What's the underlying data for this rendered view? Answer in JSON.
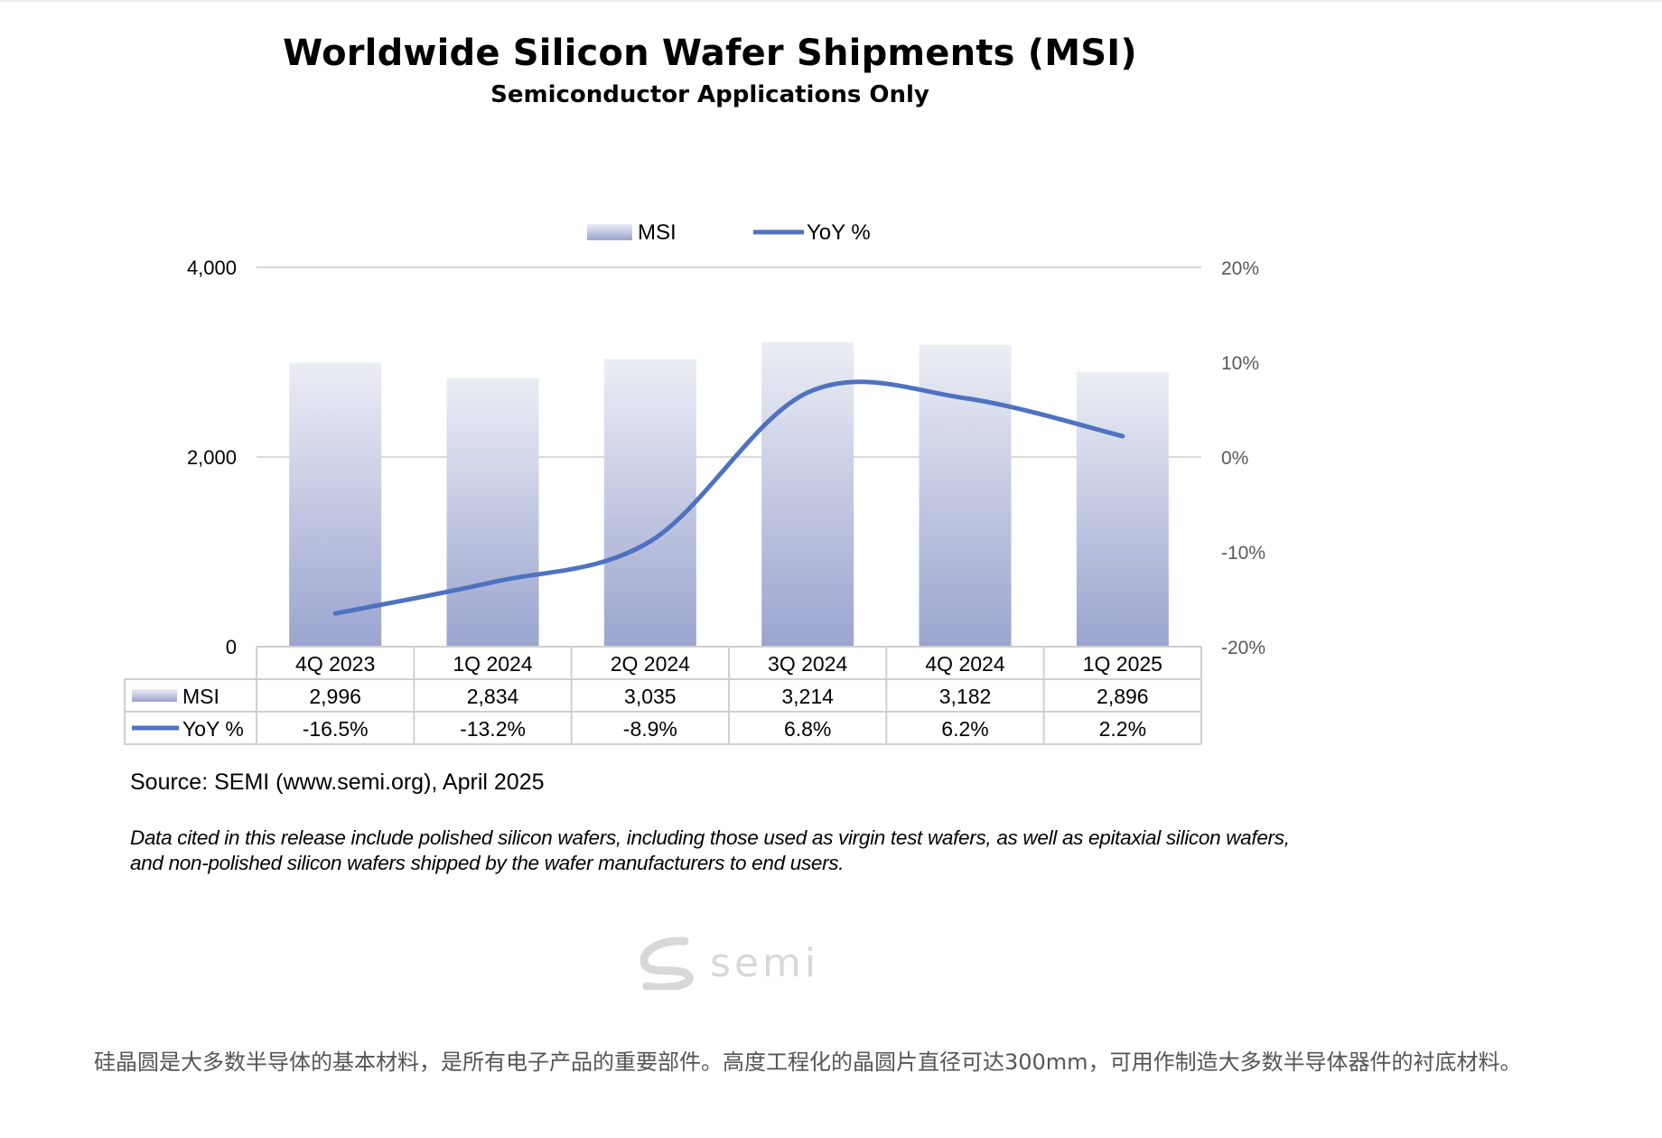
{
  "chart_data": {
    "type": "bar",
    "title": "Worldwide Silicon Wafer Shipments (MSI)",
    "subtitle": "Semiconductor Applications Only",
    "categories": [
      "4Q 2023",
      "1Q 2024",
      "2Q 2024",
      "3Q 2024",
      "4Q 2024",
      "1Q 2025"
    ],
    "series": [
      {
        "name": "MSI",
        "type": "bar",
        "axis": "left",
        "values": [
          2996,
          2834,
          3035,
          3214,
          3182,
          2896
        ],
        "labels": [
          "2,996",
          "2,834",
          "3,035",
          "3,214",
          "3,182",
          "2,896"
        ],
        "color": "#c9cde3"
      },
      {
        "name": "YoY %",
        "type": "line",
        "axis": "right",
        "values": [
          -16.5,
          -13.2,
          -8.9,
          6.8,
          6.2,
          2.2
        ],
        "labels": [
          "-16.5%",
          "-13.2%",
          "-8.9%",
          "6.8%",
          "6.2%",
          "2.2%"
        ],
        "color": "#4f72c0"
      }
    ],
    "y_left": {
      "min": 0,
      "max": 4000,
      "ticks": [
        0,
        2000,
        4000
      ],
      "tick_labels": [
        "0",
        "2,000",
        "4,000"
      ]
    },
    "y_right": {
      "min": -20,
      "max": 20,
      "ticks": [
        -20,
        -10,
        0,
        10,
        20
      ],
      "tick_labels": [
        "-20%",
        "-10%",
        "0%",
        "10%",
        "20%"
      ]
    },
    "grid": true,
    "legend": "top-center",
    "data_table": true,
    "source": "Source: SEMI (www.semi.org), April 2025",
    "note": "Data cited in this release include polished silicon wafers, including those used as virgin test wafers, as well as epitaxial silicon wafers, and non-polished silicon wafers shipped by the wafer manufacturers to end users."
  },
  "logo": {
    "text": "semi",
    "color": "#d8d8d8"
  },
  "article": {
    "paragraph": "硅晶圆是大多数半导体的基本材料，是所有电子产品的重要部件。高度工程化的晶圆片直径可达300mm，可用作制造大多数半导体器件的衬底材料。"
  }
}
